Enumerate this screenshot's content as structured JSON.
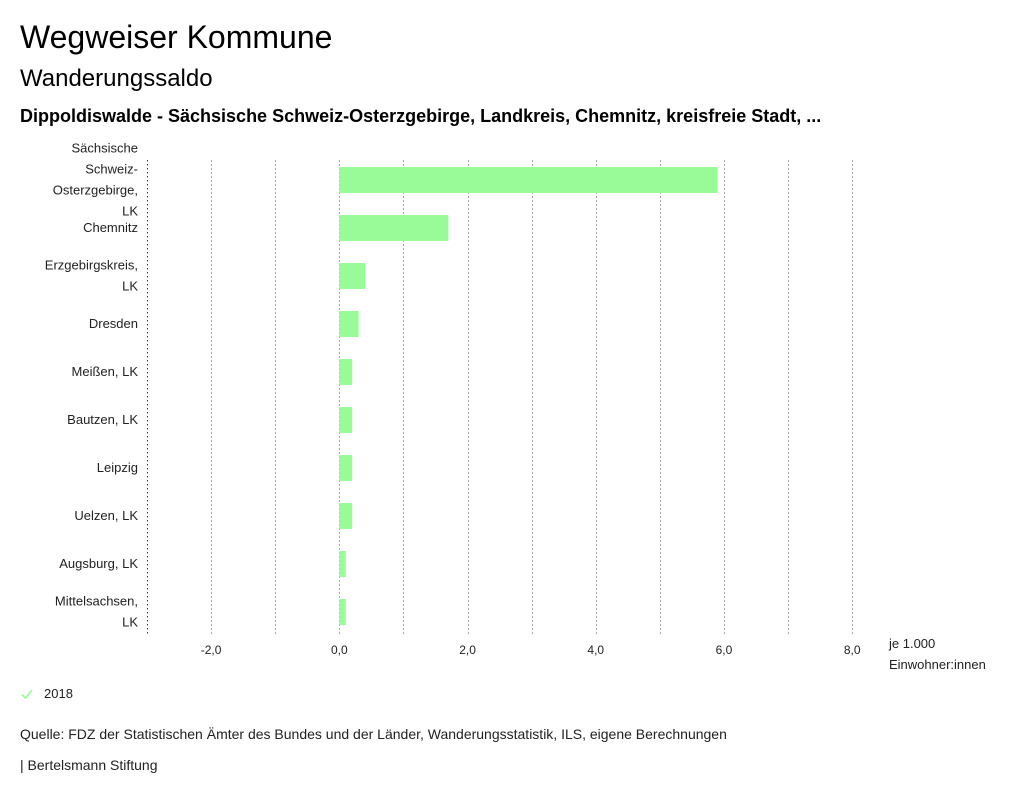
{
  "header": {
    "title": "Wegweiser Kommune",
    "subtitle": "Wanderungssaldo",
    "regions": "Dippoldiswalde - Sächsische Schweiz-Osterzgebirge, Landkreis, Chemnitz, kreisfreie Stadt, ..."
  },
  "colors": {
    "bar": "#98fb98",
    "grid": "#aaaaaa",
    "axis": "#333333"
  },
  "chart_data": {
    "type": "bar",
    "orientation": "horizontal",
    "categories": [
      [
        "Sächsische",
        "Schweiz-",
        "Osterzgebirge,",
        "LK"
      ],
      [
        "Chemnitz"
      ],
      [
        "Erzgebirgskreis,",
        "LK"
      ],
      [
        "Dresden"
      ],
      [
        "Meißen, LK"
      ],
      [
        "Bautzen, LK"
      ],
      [
        "Leipzig"
      ],
      [
        "Uelzen, LK"
      ],
      [
        "Augsburg, LK"
      ],
      [
        "Mittelsachsen,",
        "LK"
      ]
    ],
    "series": [
      {
        "name": "2018",
        "values": [
          5.9,
          1.7,
          0.4,
          0.3,
          0.2,
          0.2,
          0.2,
          0.2,
          0.1,
          0.1
        ]
      }
    ],
    "xlim": [
      -3.0,
      8.2
    ],
    "ticks": [
      -2,
      0,
      2,
      4,
      6,
      8
    ],
    "tick_labels": [
      "-2,0",
      "0,0",
      "2,0",
      "4,0",
      "6,0",
      "8,0"
    ],
    "unit_label": [
      "je 1.000",
      "Einwohner:innen"
    ],
    "grid": true,
    "legend": "bottom-left"
  },
  "legend": {
    "label": "2018"
  },
  "footer": {
    "source": "Quelle: FDZ der Statistischen Ämter des Bundes und der Länder, Wanderungsstatistik, ILS, eigene Berechnungen",
    "publisher": "| Bertelsmann Stiftung"
  }
}
